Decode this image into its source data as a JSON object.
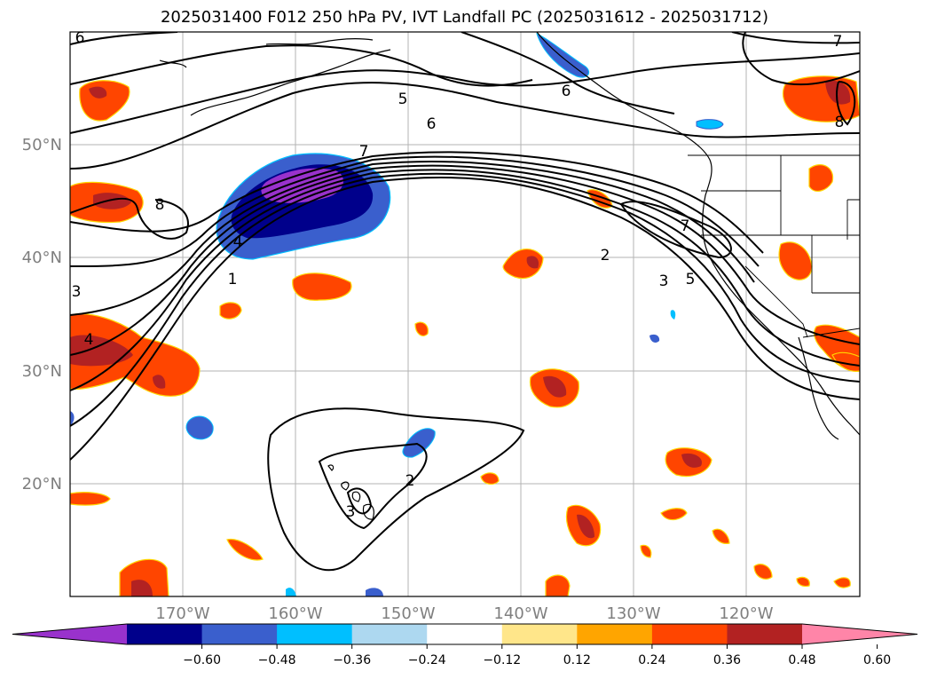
{
  "title": "2025031400 F012 250 hPa PV, IVT Landfall PC (2025031612 - 2025031712)",
  "map": {
    "lon_labels": [
      "170°W",
      "160°W",
      "150°W",
      "140°W",
      "130°W",
      "120°W"
    ],
    "lat_labels": [
      "50°N",
      "40°N",
      "30°N",
      "20°N"
    ],
    "contour_labels": [
      "1",
      "2",
      "3",
      "4",
      "5",
      "6",
      "7",
      "8"
    ]
  },
  "colorbar": {
    "colors": [
      "#9932CC",
      "#00008B",
      "#3A5FCD",
      "#00BFFF",
      "#ADD8F0",
      "#FFFFFF",
      "#FFE68A",
      "#FFA500",
      "#FF4500",
      "#B22222",
      "#FF85A8"
    ],
    "ticks": [
      "−0.60",
      "−0.48",
      "−0.36",
      "−0.24",
      "−0.12",
      "0.12",
      "0.24",
      "0.36",
      "0.48",
      "0.60"
    ]
  }
}
